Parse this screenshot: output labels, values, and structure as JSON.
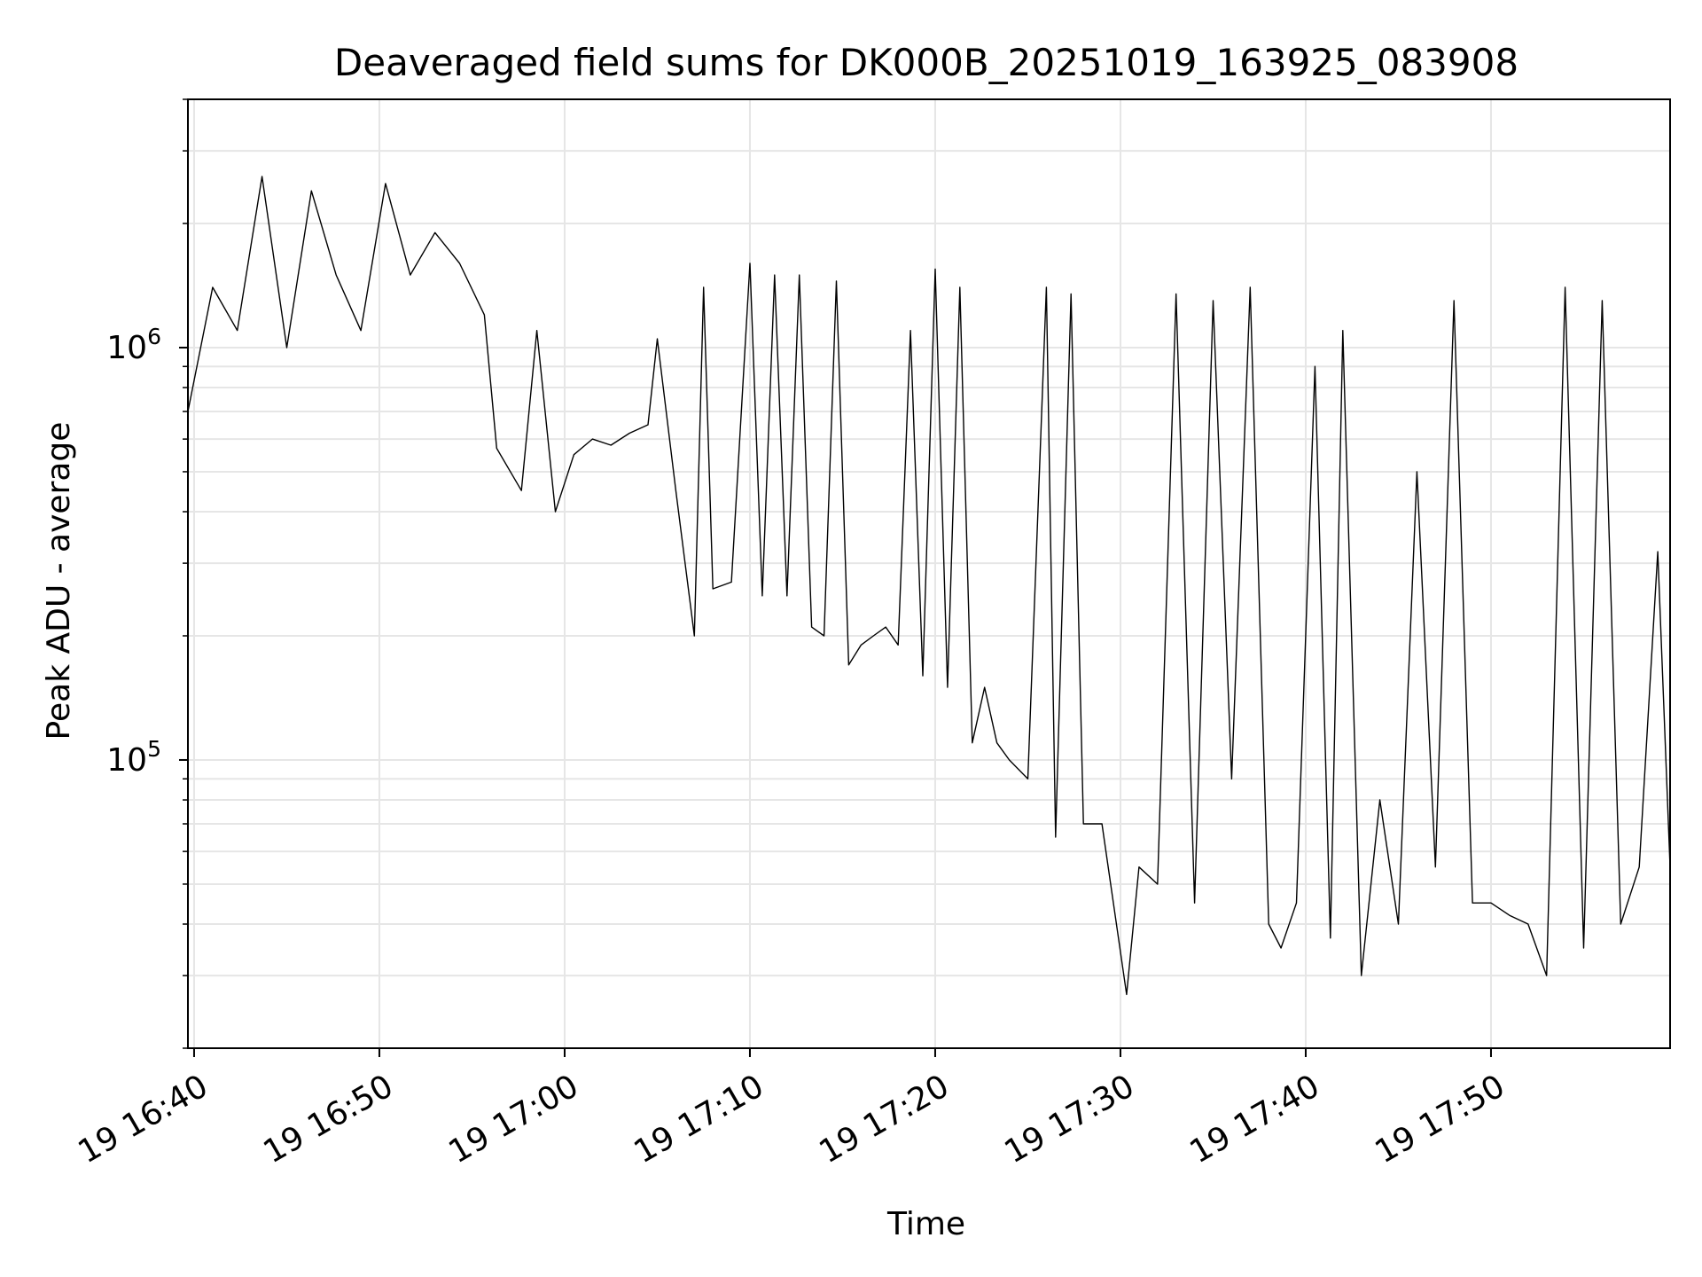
{
  "chart_data": {
    "type": "line",
    "title": "Deaveraged field sums for DK000B_20251019_163925_083908",
    "xlabel": "Time",
    "ylabel": "Peak ADU - average",
    "y_scale": "log",
    "grid": true,
    "x_range": [
      "19 16:39:40",
      "19 17:59:40"
    ],
    "ylim": [
      20000,
      4000000
    ],
    "x_tick_labels": [
      "19 16:40",
      "19 16:50",
      "19 17:00",
      "19 17:10",
      "19 17:20",
      "19 17:30",
      "19 17:40",
      "19 17:50"
    ],
    "y_tick_labels": [
      {
        "base": "10",
        "exp": "5",
        "value": 100000
      },
      {
        "base": "10",
        "exp": "6",
        "value": 1000000
      }
    ],
    "colors": {
      "line": "#000000",
      "grid": "#e6e6e6",
      "axes": "#000000"
    },
    "series": [
      {
        "x": [
          "19 16:39:40",
          "19 16:41:00",
          "19 16:42:20",
          "19 16:43:40",
          "19 16:45:00",
          "19 16:46:20",
          "19 16:47:40",
          "19 16:49:00",
          "19 16:50:20",
          "19 16:51:40",
          "19 16:53:00",
          "19 16:54:20",
          "19 16:55:40",
          "19 16:56:20",
          "19 16:57:40",
          "19 16:58:30",
          "19 16:59:30",
          "19 17:00:30",
          "19 17:01:30",
          "19 17:02:30",
          "19 17:03:30",
          "19 17:04:30",
          "19 17:05:00",
          "19 17:06:00",
          "19 17:07:00",
          "19 17:07:30",
          "19 17:08:00",
          "19 17:09:00",
          "19 17:10:00",
          "19 17:10:40",
          "19 17:11:20",
          "19 17:12:00",
          "19 17:12:40",
          "19 17:13:20",
          "19 17:14:00",
          "19 17:14:40",
          "19 17:15:20",
          "19 17:16:00",
          "19 17:16:40",
          "19 17:17:20",
          "19 17:18:00",
          "19 17:18:40",
          "19 17:19:20",
          "19 17:20:00",
          "19 17:20:40",
          "19 17:21:20",
          "19 17:22:00",
          "19 17:22:40",
          "19 17:23:20",
          "19 17:24:00",
          "19 17:25:00",
          "19 17:26:00",
          "19 17:26:30",
          "19 17:27:20",
          "19 17:28:00",
          "19 17:29:00",
          "19 17:30:20",
          "19 17:31:00",
          "19 17:32:00",
          "19 17:33:00",
          "19 17:34:00",
          "19 17:35:00",
          "19 17:36:00",
          "19 17:37:00",
          "19 17:38:00",
          "19 17:38:40",
          "19 17:39:30",
          "19 17:40:30",
          "19 17:41:20",
          "19 17:42:00",
          "19 17:43:00",
          "19 17:44:00",
          "19 17:45:00",
          "19 17:46:00",
          "19 17:47:00",
          "19 17:48:00",
          "19 17:49:00",
          "19 17:50:00",
          "19 17:51:00",
          "19 17:52:00",
          "19 17:53:00",
          "19 17:54:00",
          "19 17:55:00",
          "19 17:56:00",
          "19 17:57:00",
          "19 17:58:00",
          "19 17:59:00",
          "19 17:59:40"
        ],
        "y": [
          700000,
          1400000,
          1100000,
          2600000,
          1000000,
          2400000,
          1500000,
          1100000,
          2500000,
          1500000,
          1900000,
          1600000,
          1200000,
          570000,
          450000,
          1100000,
          400000,
          550000,
          600000,
          580000,
          620000,
          650000,
          1050000,
          450000,
          200000,
          1400000,
          260000,
          270000,
          1600000,
          250000,
          1500000,
          250000,
          1500000,
          210000,
          200000,
          1450000,
          170000,
          190000,
          200000,
          210000,
          190000,
          1100000,
          160000,
          1550000,
          150000,
          1400000,
          110000,
          150000,
          110000,
          100000,
          90000,
          1400000,
          65000,
          1350000,
          70000,
          70000,
          27000,
          55000,
          50000,
          1350000,
          45000,
          1300000,
          90000,
          1400000,
          40000,
          35000,
          45000,
          900000,
          37000,
          1100000,
          30000,
          80000,
          40000,
          500000,
          55000,
          1300000,
          45000,
          45000,
          42000,
          40000,
          30000,
          1400000,
          35000,
          1300000,
          40000,
          55000,
          320000,
          55000
        ]
      }
    ]
  }
}
